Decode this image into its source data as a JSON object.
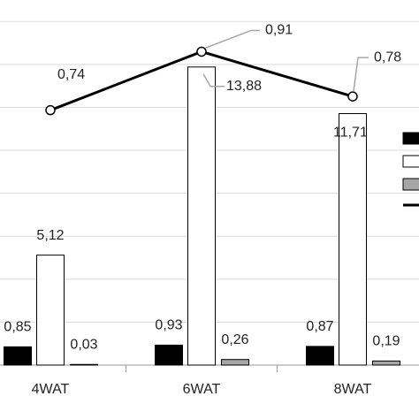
{
  "chart_data": {
    "type": "bar",
    "categories": [
      "4WAT",
      "6WAT",
      "8WAT"
    ],
    "series": [
      {
        "color": "#000000",
        "values": [
          0.85,
          0.93,
          0.87
        ],
        "value_labels": [
          "0,85",
          "0,93",
          "0,87"
        ]
      },
      {
        "color": "#ffffff",
        "values": [
          5.12,
          13.88,
          11.71
        ],
        "value_labels": [
          "5,12",
          "13,88",
          "11,71"
        ]
      },
      {
        "color": "#a6a6a6",
        "values": [
          0.03,
          0.26,
          0.19
        ],
        "value_labels": [
          "0,03",
          "0,26",
          "0,19"
        ]
      },
      {
        "type": "line",
        "axis": "y2",
        "color": "#000000",
        "values": [
          0.74,
          0.91,
          0.78
        ],
        "value_labels": [
          "0,74",
          "0,91",
          "0,78"
        ]
      }
    ],
    "ylim": [
      0,
      17
    ],
    "yticks": [
      0,
      2,
      4,
      6,
      8,
      10,
      12,
      14,
      16
    ],
    "y2lim": [
      0,
      1.06
    ],
    "grid": true
  }
}
